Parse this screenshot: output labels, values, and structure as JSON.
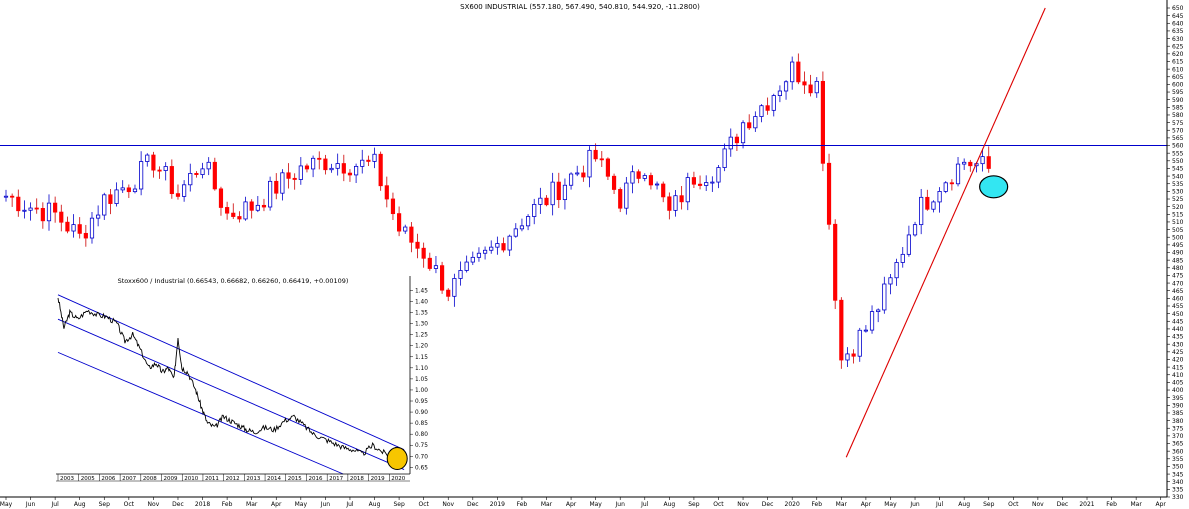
{
  "chart_data": [
    {
      "type": "candlestick",
      "title": "SX600 INDUSTRIAL (557.180, 567.490, 540.810, 544.920, -11.2800)",
      "y_ticks": [
        330,
        335,
        340,
        345,
        350,
        355,
        360,
        365,
        370,
        375,
        380,
        385,
        390,
        395,
        400,
        405,
        410,
        415,
        420,
        425,
        430,
        435,
        440,
        445,
        450,
        455,
        460,
        465,
        470,
        475,
        480,
        485,
        490,
        495,
        500,
        505,
        510,
        515,
        520,
        525,
        530,
        535,
        540,
        545,
        550,
        555,
        560,
        565,
        570,
        575,
        580,
        585,
        590,
        595,
        600,
        605,
        610,
        615,
        620,
        625,
        630,
        635,
        640,
        645,
        650
      ],
      "ylim": [
        330,
        650
      ],
      "x_labels": [
        "May",
        "Jun",
        "Jul",
        "Aug",
        "Sep",
        "Oct",
        "Nov",
        "Dec",
        "2018",
        "Feb",
        "Mar",
        "Apr",
        "May",
        "Jun",
        "Jul",
        "Aug",
        "Sep",
        "Oct",
        "Nov",
        "Dec",
        "2019",
        "Feb",
        "Mar",
        "Apr",
        "May",
        "Jun",
        "Jul",
        "Aug",
        "Sep",
        "Oct",
        "Nov",
        "Dec",
        "2020",
        "Feb",
        "Mar",
        "Apr",
        "May",
        "Jun",
        "Jul",
        "Aug",
        "Sep",
        "Oct",
        "Nov",
        "Dec",
        "2021",
        "Feb",
        "Mar",
        "Apr"
      ],
      "resistance_level": 560,
      "trendline": {
        "from": {
          "date": "Mar 2020",
          "value": 356
        },
        "to": {
          "date": "Nov 2020",
          "value": 650
        }
      },
      "highlight": {
        "date": "Sep 2020",
        "value": 533,
        "color": "#33e6f2"
      },
      "up_color": "#ffffff",
      "down_color": "#ff0000",
      "close_path": [
        {
          "month": 0,
          "close": 527
        },
        {
          "month": 1,
          "close": 520
        },
        {
          "month": 2,
          "close": 515
        },
        {
          "month": 3,
          "close": 500
        },
        {
          "month": 4,
          "close": 525
        },
        {
          "month": 5,
          "close": 535
        },
        {
          "month": 6,
          "close": 550
        },
        {
          "month": 7,
          "close": 528
        },
        {
          "month": 8,
          "close": 550
        },
        {
          "month": 9,
          "close": 515
        },
        {
          "month": 10,
          "close": 520
        },
        {
          "month": 11,
          "close": 533
        },
        {
          "month": 12,
          "close": 545
        },
        {
          "month": 13,
          "close": 550
        },
        {
          "month": 14,
          "close": 548
        },
        {
          "month": 15,
          "close": 547
        },
        {
          "month": 16,
          "close": 505
        },
        {
          "month": 17,
          "close": 490
        },
        {
          "month": 18,
          "close": 465
        },
        {
          "month": 19,
          "close": 480
        },
        {
          "month": 20,
          "close": 495
        },
        {
          "month": 21,
          "close": 512
        },
        {
          "month": 22,
          "close": 525
        },
        {
          "month": 23,
          "close": 540
        },
        {
          "month": 24,
          "close": 552
        },
        {
          "month": 25,
          "close": 525
        },
        {
          "month": 26,
          "close": 548
        },
        {
          "month": 27,
          "close": 515
        },
        {
          "month": 28,
          "close": 540
        },
        {
          "month": 29,
          "close": 545
        },
        {
          "month": 30,
          "close": 575
        },
        {
          "month": 31,
          "close": 590
        },
        {
          "month": 32,
          "close": 610
        },
        {
          "month": 33,
          "close": 600
        },
        {
          "month": 34,
          "close": 420
        },
        {
          "month": 35,
          "close": 440
        },
        {
          "month": 36,
          "close": 470
        },
        {
          "month": 37,
          "close": 515
        },
        {
          "month": 38,
          "close": 535
        },
        {
          "month": 39,
          "close": 550
        },
        {
          "month": 40,
          "close": 545
        }
      ]
    },
    {
      "type": "line",
      "title": "Stoxx600 / Industrial (0.66543, 0.66682, 0.66260, 0.66419, +0.00109)",
      "y_ticks": [
        0.65,
        0.7,
        0.75,
        0.8,
        0.85,
        0.9,
        0.95,
        1.0,
        1.05,
        1.1,
        1.15,
        1.2,
        1.25,
        1.3,
        1.35,
        1.4,
        1.45
      ],
      "ylim": [
        0.62,
        1.47
      ],
      "x_labels": [
        "2003",
        "2005",
        "2006",
        "2007",
        "2008",
        "2009",
        "2010",
        "2011",
        "2012",
        "2013",
        "2014",
        "2015",
        "2016",
        "2017",
        "2018",
        "2019",
        "2020"
      ],
      "series": [
        {
          "x": [
            2003.0,
            2003.3,
            2003.6,
            2004.0,
            2004.5,
            2005.0,
            2005.5,
            2006.0,
            2006.4,
            2006.8,
            2007.2,
            2007.6,
            2008.0,
            2008.3,
            2008.6,
            2008.9,
            2009.1,
            2009.3,
            2009.6,
            2010.0,
            2010.3,
            2010.6,
            2011.0,
            2011.4,
            2011.8,
            2012.2,
            2012.6,
            2013.0,
            2013.5,
            2014.0,
            2014.5,
            2015.0,
            2015.5,
            2016.0,
            2016.5,
            2017.0,
            2017.5,
            2018.0,
            2018.5,
            2019.0,
            2019.5,
            2020.0,
            2020.2,
            2020.5
          ],
          "y": [
            1.42,
            1.28,
            1.35,
            1.32,
            1.36,
            1.34,
            1.33,
            1.3,
            1.22,
            1.25,
            1.18,
            1.1,
            1.12,
            1.08,
            1.1,
            1.05,
            1.24,
            1.1,
            1.08,
            1.0,
            0.92,
            0.85,
            0.83,
            0.88,
            0.86,
            0.84,
            0.82,
            0.81,
            0.83,
            0.82,
            0.86,
            0.88,
            0.84,
            0.8,
            0.78,
            0.76,
            0.74,
            0.73,
            0.71,
            0.75,
            0.72,
            0.7,
            0.74,
            0.66
          ]
        }
      ],
      "channel_lines": [
        {
          "from": [
            2003.0,
            1.43
          ],
          "to": [
            2020.6,
            0.73
          ]
        },
        {
          "from": [
            2003.0,
            1.32
          ],
          "to": [
            2020.6,
            0.64
          ]
        },
        {
          "from": [
            2003.0,
            1.17
          ],
          "to": [
            2017.5,
            0.62
          ]
        }
      ],
      "highlight": {
        "x": 2020.25,
        "y": 0.69,
        "color": "#f7c600"
      }
    }
  ]
}
